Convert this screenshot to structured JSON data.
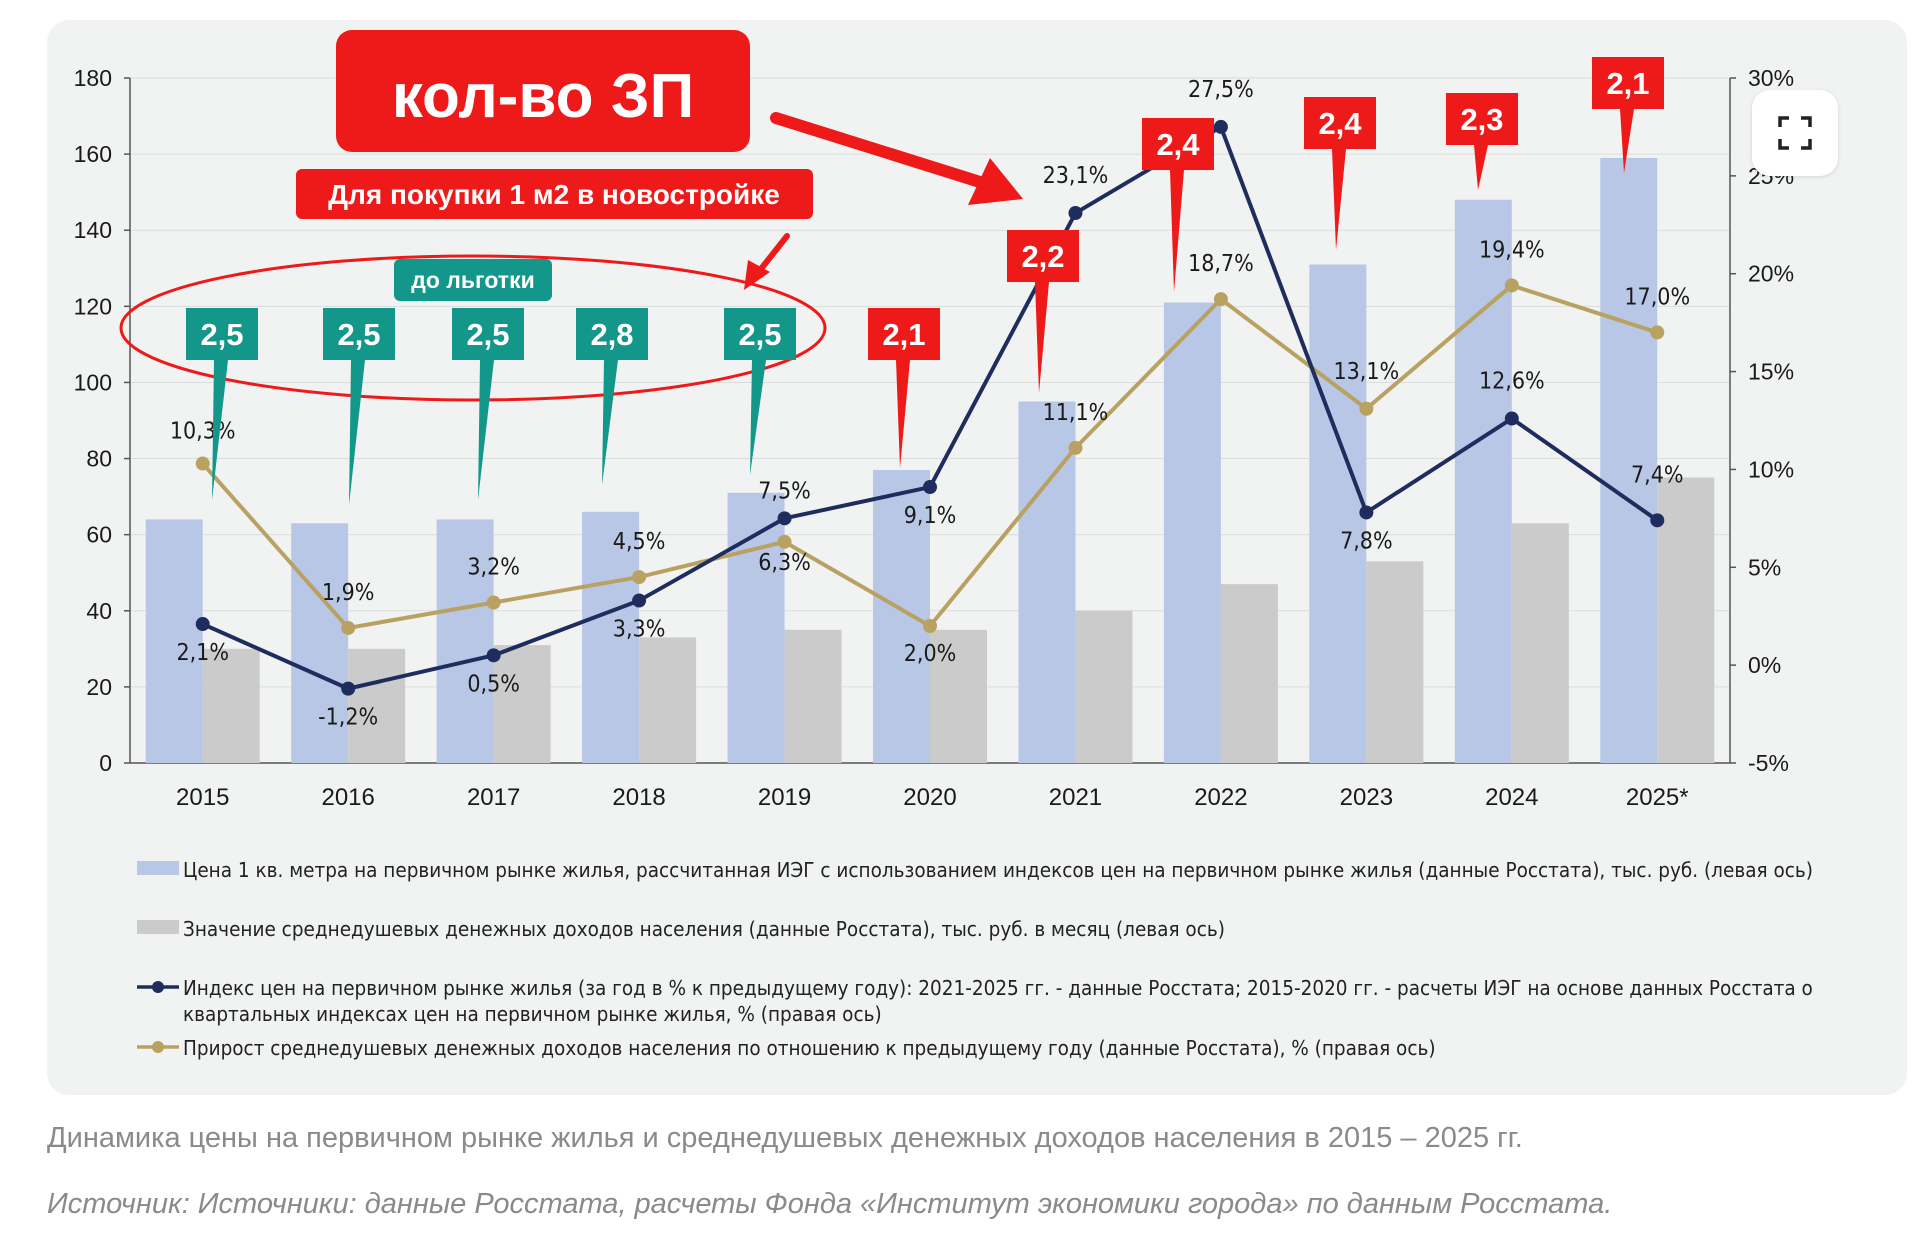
{
  "caption": "Динамика цены на первичном рынке жилья и среднедушевых денежных доходов населения в 2015 – 2025 гг.",
  "source": "Источник: Источники: данные Росстата, расчеты Фонда «Институт экономики города» по данным Росстата.",
  "expand_button": {
    "icon": "expand-icon"
  },
  "colors": {
    "price_bar": "#b8c7e6",
    "income_bar": "#cbcbcb",
    "price_line": "#1f2d5e",
    "income_line": "#b9a162",
    "red_callout": "#ee1a1a",
    "teal_callout": "#13978a"
  },
  "chart_data": {
    "type": "bar",
    "categories": [
      "2015",
      "2016",
      "2017",
      "2018",
      "2019",
      "2020",
      "2021",
      "2022",
      "2023",
      "2024",
      "2025*"
    ],
    "left_axis": {
      "ticks": [
        "0",
        "20",
        "40",
        "60",
        "80",
        "100",
        "120",
        "140",
        "160",
        "180"
      ],
      "ylim": [
        0,
        180
      ]
    },
    "right_axis": {
      "ticks": [
        "-5%",
        "0%",
        "5%",
        "10%",
        "15%",
        "20%",
        "25%",
        "30%"
      ],
      "ylim": [
        -5,
        30
      ]
    },
    "series": [
      {
        "name": "Цена 1 кв. метра на первичном рынке жилья, рассчитанная ИЭГ с использованием индексов цен на первичном рынке жилья (данные Росстата), тыс. руб. (левая ось)",
        "type": "bar",
        "axis": "left",
        "values": [
          64,
          63,
          64,
          66,
          71,
          77,
          95,
          121,
          131,
          148,
          159
        ]
      },
      {
        "name": "Значение среднедушевых денежных доходов населения (данные Росстата), тыс. руб. в месяц (левая ось)",
        "type": "bar",
        "axis": "left",
        "values": [
          30,
          30,
          31,
          33,
          35,
          35,
          40,
          47,
          53,
          63,
          75
        ]
      },
      {
        "name": "Индекс цен на первичном рынке жилья (за год в % к предыдущему году): 2021-2025 гг. - данные Росстата; 2015-2020 гг. - расчеты ИЭГ на основе данных Росстата о квартальных индексах цен на первичном рынке жилья, % (правая ось)",
        "type": "line",
        "axis": "right",
        "values": [
          2.1,
          -1.2,
          0.5,
          3.3,
          7.5,
          9.1,
          23.1,
          27.5,
          7.8,
          12.6,
          7.4
        ],
        "labels": [
          "2,1%",
          "-1,2%",
          "0,5%",
          "3,3%",
          "7,5%",
          "9,1%",
          "23,1%",
          "27,5%",
          "7,8%",
          "12,6%",
          "7,4%"
        ]
      },
      {
        "name": "Прирост среднедушевых денежных доходов населения по отношению к предыдущему году (данные Росстата), % (правая ось)",
        "type": "line",
        "axis": "right",
        "values": [
          10.3,
          1.9,
          3.2,
          4.5,
          6.3,
          2.0,
          11.1,
          18.7,
          13.1,
          19.4,
          17.0
        ],
        "labels": [
          "10,3%",
          "1,9%",
          "3,2%",
          "4,5%",
          "6,3%",
          "2,0%",
          "11,1%",
          "18,7%",
          "13,1%",
          "19,4%",
          "17,0%"
        ]
      }
    ],
    "legend": [
      {
        "kind": "bar",
        "color": "#b8c7e6",
        "lines": [
          "Цена 1 кв. метра на первичном рынке жилья, рассчитанная ИЭГ с использованием индексов цен на первичном рынке жилья (данные Росстата), тыс. руб. (левая ось)"
        ]
      },
      {
        "kind": "bar",
        "color": "#cbcbcb",
        "lines": [
          "Значение среднедушевых денежных доходов населения (данные Росстата), тыс. руб. в месяц (левая ось)"
        ]
      },
      {
        "kind": "line",
        "color": "#1f2d5e",
        "lines": [
          "Индекс цен на первичном рынке жилья (за год в % к предыдущему году): 2021-2025 гг. - данные Росстата; 2015-2020 гг. - расчеты ИЭГ на основе данных Росстата о",
          "квартальных индексах цен на первичном рынке жилья, % (правая ось)"
        ]
      },
      {
        "kind": "line",
        "color": "#b9a162",
        "lines": [
          "Прирост среднедушевых денежных доходов населения по отношению к предыдущему году (данные Росстата), % (правая ось)"
        ]
      }
    ],
    "legend_placement": "bottom",
    "annotations": {
      "title_box": "кол-во ЗП",
      "subtitle_box": "Для покупки 1 м2 в новостройке",
      "discount_label": "до льготки",
      "callouts": [
        {
          "text": "2,5",
          "color": "teal",
          "category": "2015"
        },
        {
          "text": "2,5",
          "color": "teal",
          "category": "2016"
        },
        {
          "text": "2,5",
          "color": "teal",
          "category": "2017"
        },
        {
          "text": "2,8",
          "color": "teal",
          "category": "2018"
        },
        {
          "text": "2,5",
          "color": "teal",
          "category": "2019"
        },
        {
          "text": "2,1",
          "color": "red",
          "category": "2020"
        },
        {
          "text": "2,2",
          "color": "red",
          "category": "2021"
        },
        {
          "text": "2,4",
          "color": "red",
          "category": "2022"
        },
        {
          "text": "2,4",
          "color": "red",
          "category": "2023"
        },
        {
          "text": "2,3",
          "color": "red",
          "category": "2024"
        },
        {
          "text": "2,1",
          "color": "red",
          "category": "2025*"
        }
      ]
    }
  }
}
